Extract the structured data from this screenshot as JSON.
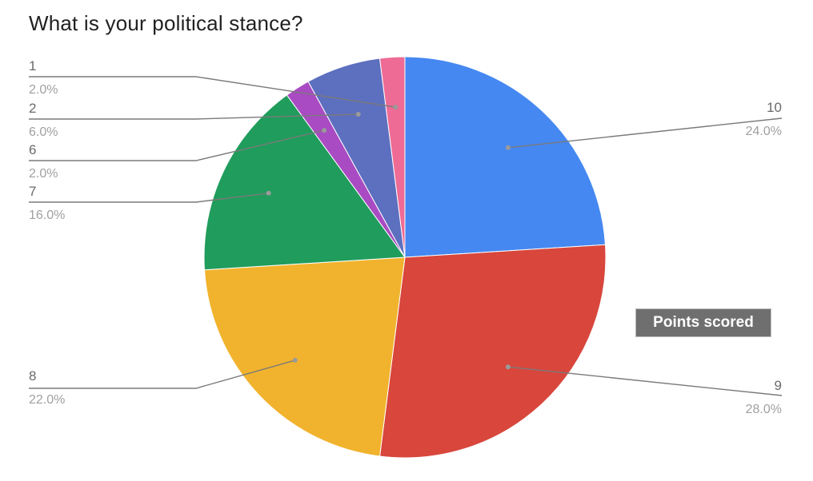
{
  "chart_data": {
    "type": "pie",
    "title": "What is your political stance?",
    "slices": [
      {
        "label": "10",
        "value": 24.0,
        "percent_label": "24.0%",
        "color": "#4688f1"
      },
      {
        "label": "9",
        "value": 28.0,
        "percent_label": "28.0%",
        "color": "#d8463c"
      },
      {
        "label": "8",
        "value": 22.0,
        "percent_label": "22.0%",
        "color": "#f1b32d"
      },
      {
        "label": "7",
        "value": 16.0,
        "percent_label": "16.0%",
        "color": "#209c5c"
      },
      {
        "label": "6",
        "value": 2.0,
        "percent_label": "2.0%",
        "color": "#a94bc2"
      },
      {
        "label": "2",
        "value": 6.0,
        "percent_label": "6.0%",
        "color": "#5d6fbf"
      },
      {
        "label": "1",
        "value": 2.0,
        "percent_label": "2.0%",
        "color": "#ee6b95"
      }
    ],
    "tooltip": "Points scored"
  }
}
